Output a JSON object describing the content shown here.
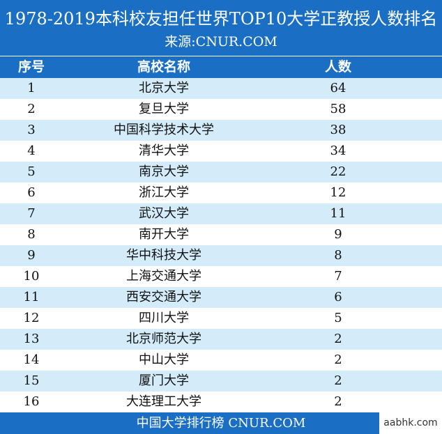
{
  "title": "1978-2019本科校友担任世界TOP10大学正教授人数排名",
  "source": "来源:CNUR.COM",
  "headers": {
    "rank": "序号",
    "school": "高校名称",
    "count": "人数"
  },
  "rows": [
    {
      "rank": "1",
      "school": "北京大学",
      "count": "64"
    },
    {
      "rank": "2",
      "school": "复旦大学",
      "count": "58"
    },
    {
      "rank": "3",
      "school": "中国科学技术大学",
      "count": "38"
    },
    {
      "rank": "4",
      "school": "清华大学",
      "count": "34"
    },
    {
      "rank": "5",
      "school": "南京大学",
      "count": "22"
    },
    {
      "rank": "6",
      "school": "浙江大学",
      "count": "12"
    },
    {
      "rank": "7",
      "school": "武汉大学",
      "count": "11"
    },
    {
      "rank": "8",
      "school": "南开大学",
      "count": "9"
    },
    {
      "rank": "9",
      "school": "华中科技大学",
      "count": "8"
    },
    {
      "rank": "10",
      "school": "上海交通大学",
      "count": "7"
    },
    {
      "rank": "11",
      "school": "西安交通大学",
      "count": "6"
    },
    {
      "rank": "12",
      "school": "四川大学",
      "count": "5"
    },
    {
      "rank": "13",
      "school": "北京师范大学",
      "count": "2"
    },
    {
      "rank": "14",
      "school": "中山大学",
      "count": "2"
    },
    {
      "rank": "15",
      "school": "厦门大学",
      "count": "2"
    },
    {
      "rank": "16",
      "school": "大连理工大学",
      "count": "2"
    }
  ],
  "footer": "中国大学排行榜 CNUR.COM",
  "watermark": "aabhk.com",
  "colors": {
    "primary": "#1a6fc4",
    "stripe": "#d4ecfa"
  }
}
